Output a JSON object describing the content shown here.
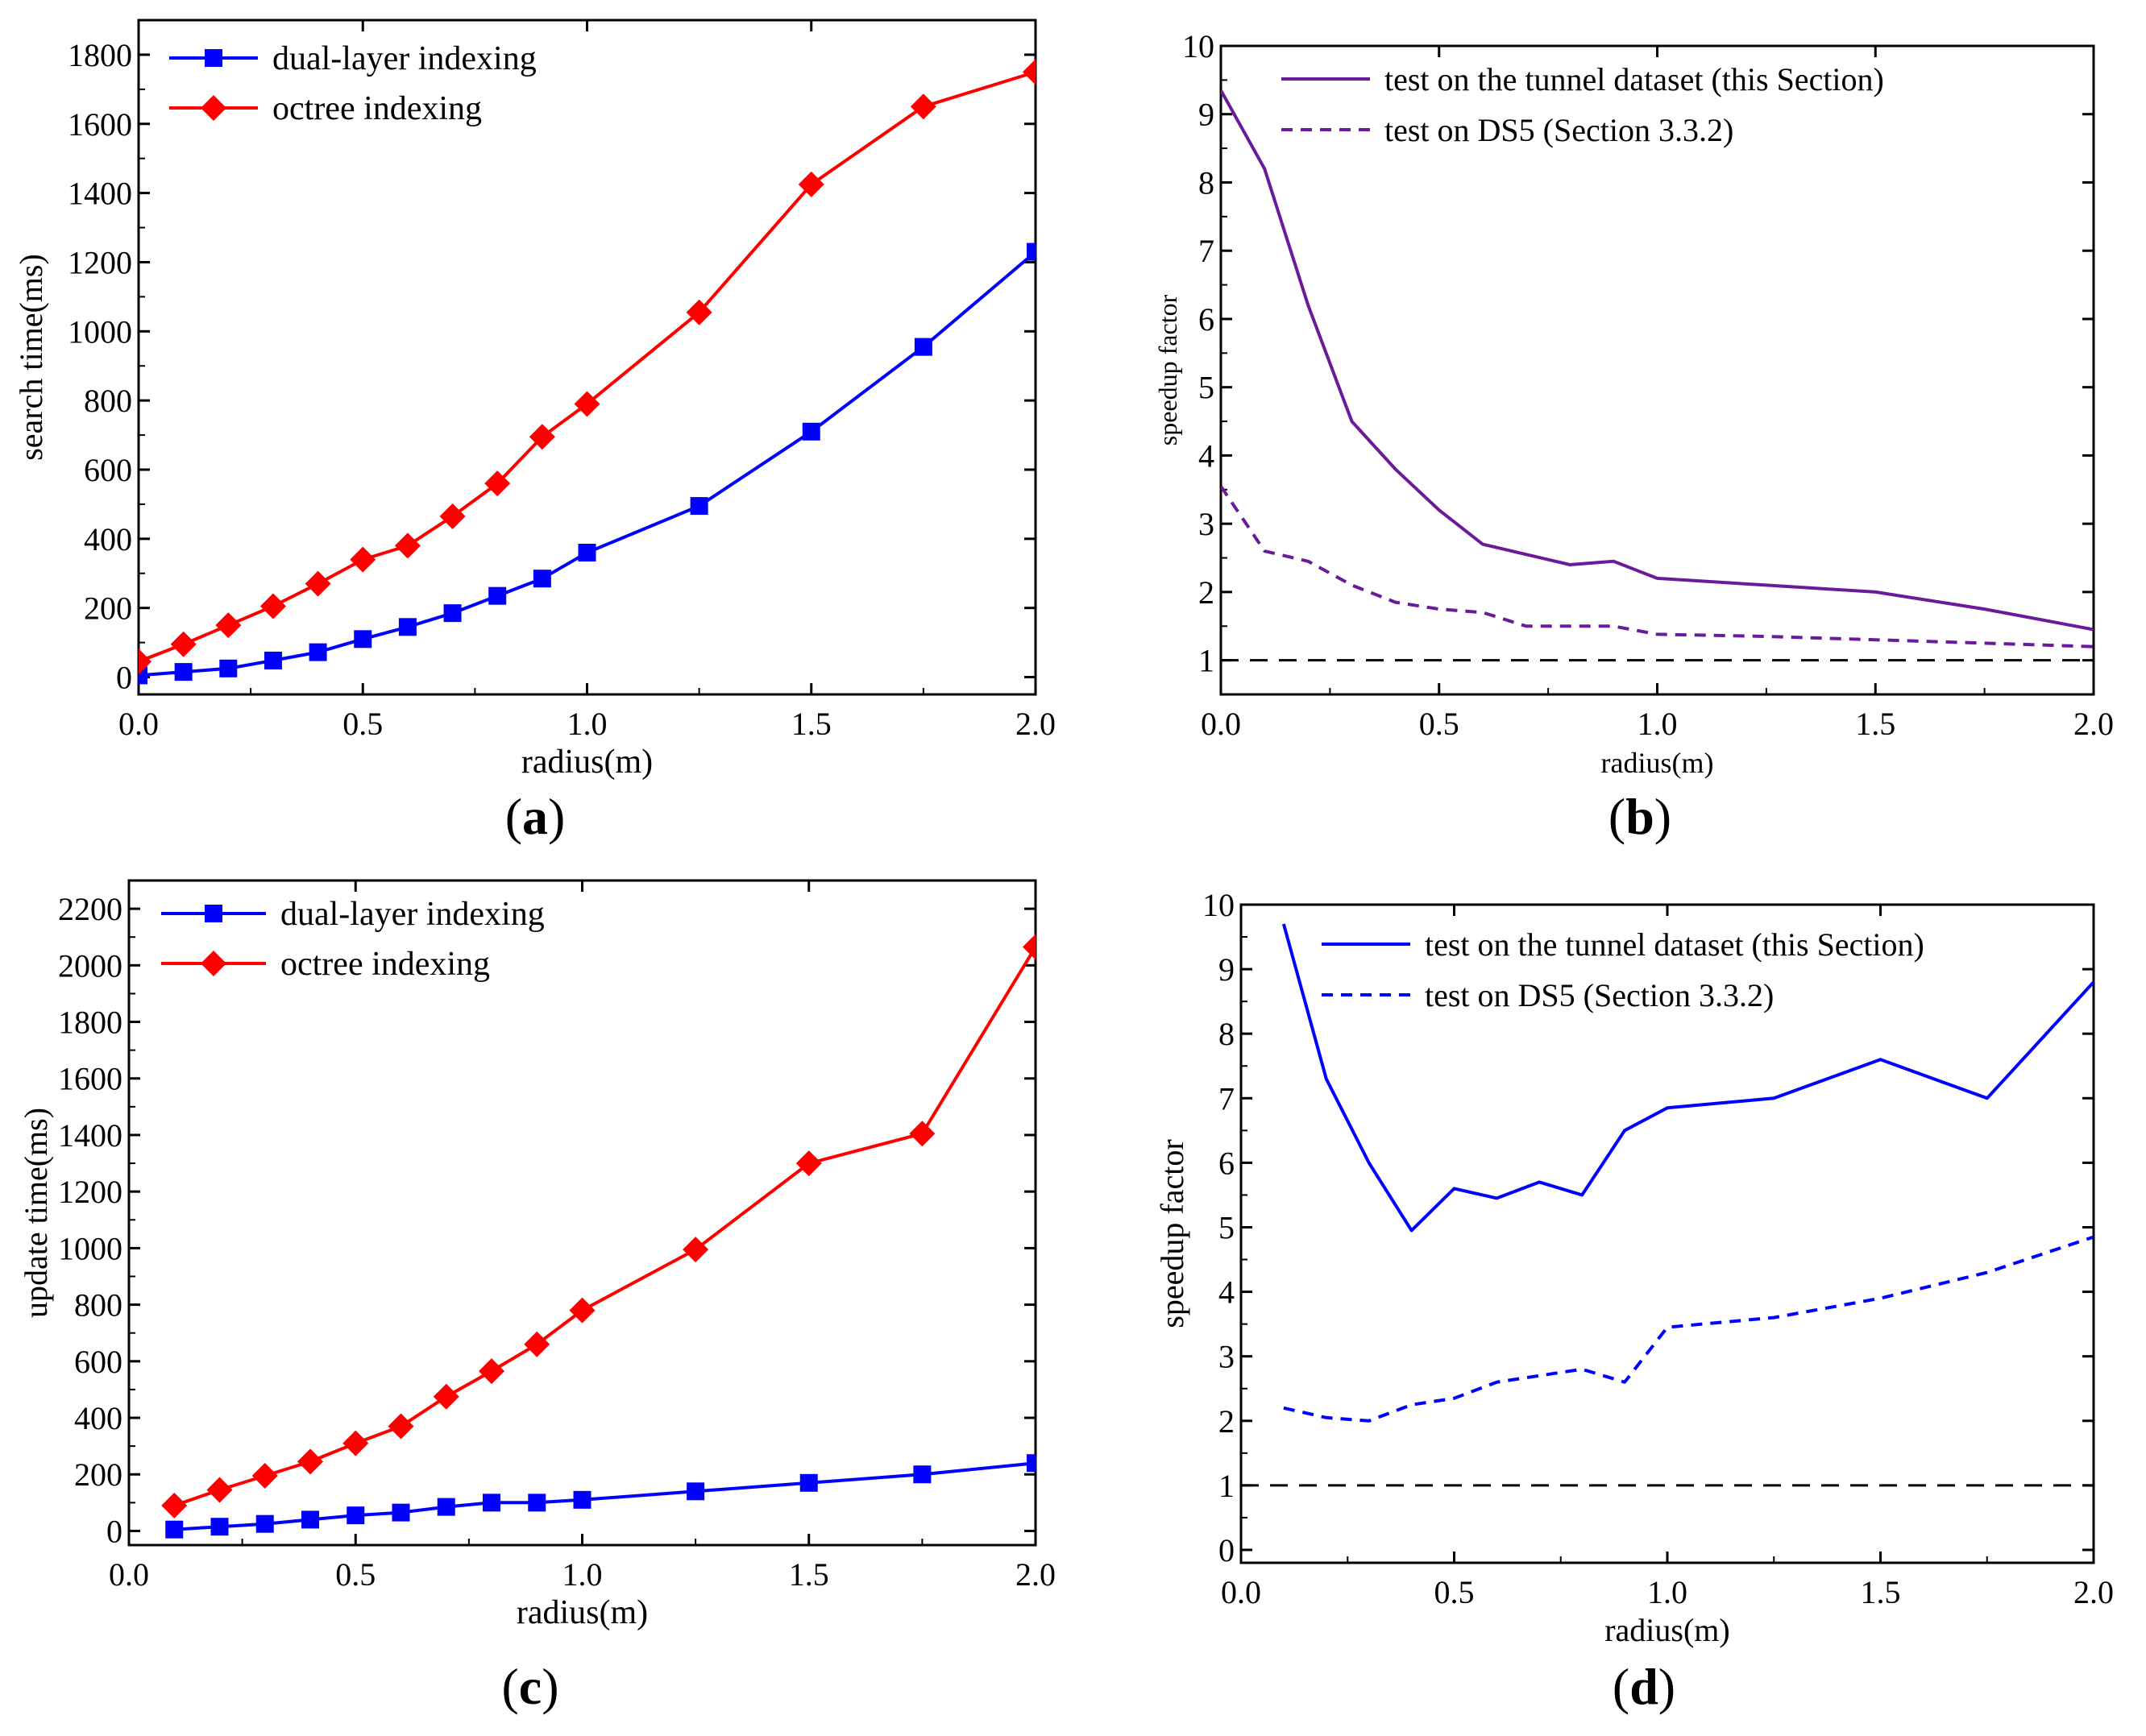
{
  "chart_data": [
    {
      "panel": "(a)",
      "type": "line",
      "panel_label": "a",
      "xlabel": "radius(m)",
      "ylabel": "search time(ms)",
      "xlim": [
        0,
        2
      ],
      "ylim": [
        -50,
        1900
      ],
      "xticks": [
        0,
        0.5,
        1,
        1.5,
        2
      ],
      "xtick_labels": [
        "0.0",
        "0.5",
        "1.0",
        "1.5",
        "2.0"
      ],
      "yticks": [
        0,
        200,
        400,
        600,
        800,
        1000,
        1200,
        1400,
        1600,
        1800
      ],
      "ytick_labels": [
        "0",
        "200",
        "400",
        "600",
        "800",
        "1000",
        "1200",
        "1400",
        "1600",
        "1800"
      ],
      "reference_line": null,
      "legend_position": "top-left",
      "series": [
        {
          "name": "dual-layer indexing",
          "color": "#0000ff",
          "marker": "square",
          "dashed": false,
          "x": [
            0,
            0.1,
            0.2,
            0.3,
            0.4,
            0.5,
            0.6,
            0.7,
            0.8,
            0.9,
            1.0,
            1.25,
            1.5,
            1.75,
            2.0
          ],
          "y": [
            5,
            15,
            25,
            48,
            72,
            110,
            145,
            185,
            235,
            285,
            360,
            495,
            710,
            955,
            1230
          ]
        },
        {
          "name": "octree indexing",
          "color": "#ff0000",
          "marker": "diamond",
          "dashed": false,
          "x": [
            0,
            0.1,
            0.2,
            0.3,
            0.4,
            0.5,
            0.6,
            0.7,
            0.8,
            0.9,
            1.0,
            1.25,
            1.5,
            1.75,
            2.0
          ],
          "y": [
            45,
            95,
            150,
            205,
            270,
            340,
            380,
            465,
            560,
            695,
            790,
            1055,
            1425,
            1650,
            1750
          ]
        }
      ]
    },
    {
      "panel": "(b)",
      "type": "line",
      "panel_label": "b",
      "xlabel": "radius(m)",
      "ylabel": "speedup factor",
      "xlim": [
        0,
        2
      ],
      "ylim": [
        0.5,
        10
      ],
      "xticks": [
        0,
        0.5,
        1,
        1.5,
        2
      ],
      "xtick_labels": [
        "0.0",
        "0.5",
        "1.0",
        "1.5",
        "2.0"
      ],
      "yticks": [
        1,
        2,
        3,
        4,
        5,
        6,
        7,
        8,
        9,
        10
      ],
      "ytick_labels": [
        "1",
        "2",
        "3",
        "4",
        "5",
        "6",
        "7",
        "8",
        "9",
        "10"
      ],
      "reference_line": 1,
      "legend_position": "top-right",
      "series": [
        {
          "name": "test on the tunnel dataset (this Section)",
          "color": "#6a1b9a",
          "marker": "none",
          "dashed": false,
          "x": [
            0,
            0.1,
            0.2,
            0.3,
            0.4,
            0.5,
            0.6,
            0.7,
            0.8,
            0.9,
            1.0,
            1.25,
            1.5,
            1.75,
            2.0
          ],
          "y": [
            9.35,
            8.2,
            6.2,
            4.5,
            3.8,
            3.2,
            2.7,
            2.55,
            2.4,
            2.45,
            2.2,
            2.1,
            2.0,
            1.75,
            1.45
          ]
        },
        {
          "name": "test on DS5 (Section 3.3.2)",
          "color": "#6a1b9a",
          "marker": "none",
          "dashed": true,
          "x": [
            0,
            0.1,
            0.2,
            0.3,
            0.4,
            0.5,
            0.6,
            0.7,
            0.8,
            0.9,
            1.0,
            1.25,
            1.5,
            1.75,
            2.0
          ],
          "y": [
            3.55,
            2.6,
            2.45,
            2.1,
            1.85,
            1.75,
            1.7,
            1.5,
            1.5,
            1.5,
            1.38,
            1.35,
            1.3,
            1.25,
            1.2
          ]
        }
      ]
    },
    {
      "panel": "(c)",
      "type": "line",
      "panel_label": "c",
      "xlabel": "radius(m)",
      "ylabel": "update time(ms)",
      "xlim": [
        0,
        2
      ],
      "ylim": [
        -50,
        2300
      ],
      "xticks": [
        0,
        0.5,
        1,
        1.5,
        2
      ],
      "xtick_labels": [
        "0.0",
        "0.5",
        "1.0",
        "1.5",
        "2.0"
      ],
      "yticks": [
        0,
        200,
        400,
        600,
        800,
        1000,
        1200,
        1400,
        1600,
        1800,
        2000,
        2200
      ],
      "ytick_labels": [
        "0",
        "200",
        "400",
        "600",
        "800",
        "1000",
        "1200",
        "1400",
        "1600",
        "1800",
        "2000",
        "2200"
      ],
      "reference_line": null,
      "legend_position": "top-left",
      "series": [
        {
          "name": "dual-layer indexing",
          "color": "#0000ff",
          "marker": "square",
          "dashed": false,
          "x": [
            0.1,
            0.2,
            0.3,
            0.4,
            0.5,
            0.6,
            0.7,
            0.8,
            0.9,
            1.0,
            1.25,
            1.5,
            1.75,
            2.0
          ],
          "y": [
            5,
            15,
            25,
            40,
            55,
            65,
            85,
            100,
            100,
            110,
            140,
            170,
            200,
            240
          ]
        },
        {
          "name": "octree indexing",
          "color": "#ff0000",
          "marker": "diamond",
          "dashed": false,
          "x": [
            0.1,
            0.2,
            0.3,
            0.4,
            0.5,
            0.6,
            0.7,
            0.8,
            0.9,
            1.0,
            1.25,
            1.5,
            1.75,
            2.0
          ],
          "y": [
            90,
            145,
            195,
            245,
            310,
            370,
            475,
            565,
            660,
            780,
            995,
            1300,
            1405,
            2065
          ]
        }
      ]
    },
    {
      "panel": "(d)",
      "type": "line",
      "panel_label": "d",
      "xlabel": "radius(m)",
      "ylabel": "speedup factor",
      "xlim": [
        0,
        2
      ],
      "ylim": [
        -0.2,
        10
      ],
      "xticks": [
        0,
        0.5,
        1,
        1.5,
        2
      ],
      "xtick_labels": [
        "0.0",
        "0.5",
        "1.0",
        "1.5",
        "2.0"
      ],
      "yticks": [
        0,
        1,
        2,
        3,
        4,
        5,
        6,
        7,
        8,
        9,
        10
      ],
      "ytick_labels": [
        "0",
        "1",
        "2",
        "3",
        "4",
        "5",
        "6",
        "7",
        "8",
        "9",
        "10"
      ],
      "reference_line": 1,
      "legend_position": "top-right",
      "series": [
        {
          "name": "test on the tunnel dataset (this Section)",
          "color": "#0000ff",
          "marker": "none",
          "dashed": false,
          "x": [
            0.1,
            0.2,
            0.3,
            0.4,
            0.5,
            0.6,
            0.7,
            0.8,
            0.9,
            1.0,
            1.25,
            1.5,
            1.75,
            2.0
          ],
          "y": [
            9.7,
            7.3,
            6.0,
            4.95,
            5.6,
            5.45,
            5.7,
            5.5,
            6.5,
            6.85,
            7.0,
            7.6,
            7.0,
            8.8
          ]
        },
        {
          "name": "test on DS5 (Section 3.3.2)",
          "color": "#0000ff",
          "marker": "none",
          "dashed": true,
          "x": [
            0.1,
            0.2,
            0.3,
            0.4,
            0.5,
            0.6,
            0.7,
            0.8,
            0.9,
            1.0,
            1.25,
            1.5,
            1.75,
            2.0
          ],
          "y": [
            2.2,
            2.05,
            2.0,
            2.25,
            2.35,
            2.6,
            2.7,
            2.8,
            2.6,
            3.45,
            3.6,
            3.9,
            4.3,
            4.85
          ]
        }
      ]
    }
  ]
}
